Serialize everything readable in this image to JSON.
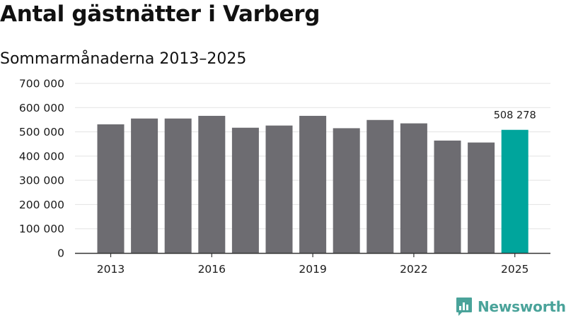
{
  "chart_data": {
    "type": "bar",
    "title": "Antal gästnätter i Varberg",
    "subtitle": "Sommarmånaderna 2013–2025",
    "categories": [
      "2013",
      "2014",
      "2015",
      "2016",
      "2017",
      "2018",
      "2019",
      "2020",
      "2021",
      "2022",
      "2023",
      "2024",
      "2025"
    ],
    "values": [
      531000,
      555000,
      555000,
      566000,
      517000,
      526000,
      566000,
      515000,
      549000,
      535000,
      464000,
      456000,
      508278
    ],
    "x_tick_labels": [
      "2013",
      "2016",
      "2019",
      "2022",
      "2025"
    ],
    "y_ticks": [
      0,
      100000,
      200000,
      300000,
      400000,
      500000,
      600000,
      700000
    ],
    "y_tick_labels": [
      "0",
      "100 000",
      "200 000",
      "300 000",
      "400 000",
      "500 000",
      "600 000",
      "700 000"
    ],
    "ylim": [
      0,
      700000
    ],
    "grid": true,
    "highlight_index": 12,
    "data_labels": [
      {
        "index": 12,
        "text": "508 278"
      }
    ],
    "colors": {
      "bar": "#6d6c71",
      "highlight": "#00a59c",
      "grid": "#e3e3e3",
      "axis": "#333333"
    }
  },
  "brand": {
    "name": "Newsworthy",
    "icon": "bar-chart-bubble-icon",
    "color": "#4aa39a"
  }
}
